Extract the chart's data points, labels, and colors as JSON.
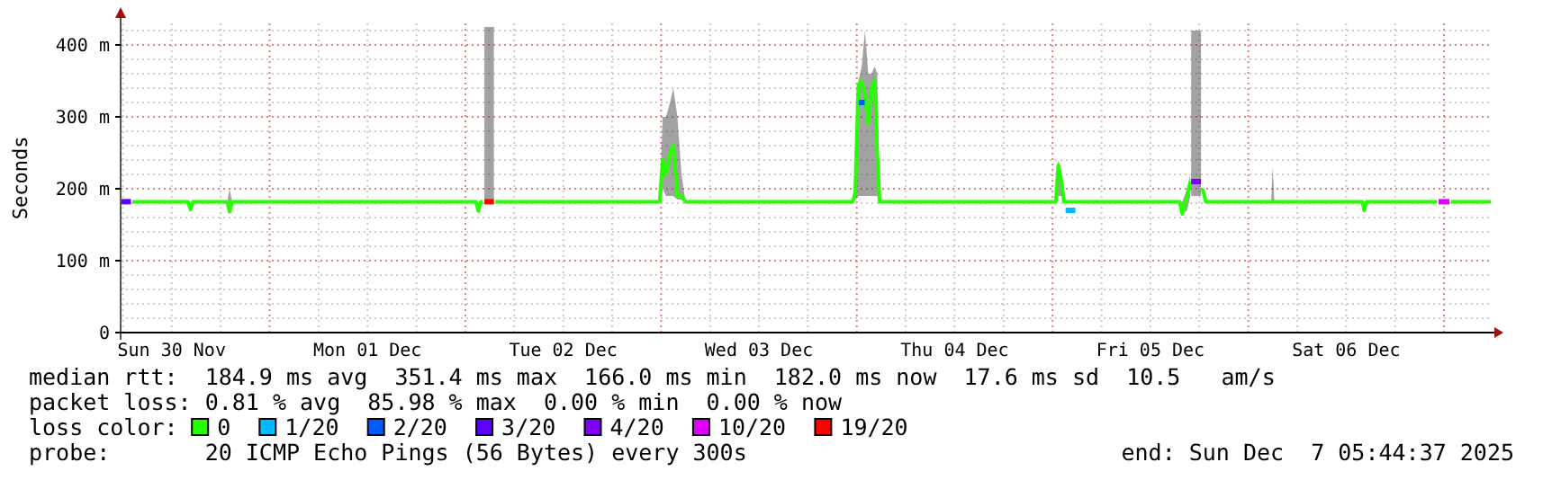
{
  "chart_data": {
    "type": "line",
    "ylabel": "Seconds",
    "legend_title": "loss color:",
    "legend": "bottom",
    "grid": true,
    "xlim": [
      "2025-11-30T05:44",
      "2025-12-07T05:44"
    ],
    "xticks": [
      {
        "value": "2025-11-30T12:00",
        "label": "Sun 30 Nov"
      },
      {
        "value": "2025-12-01T12:00",
        "label": "Mon 01 Dec"
      },
      {
        "value": "2025-12-02T12:00",
        "label": "Tue 02 Dec"
      },
      {
        "value": "2025-12-03T12:00",
        "label": "Wed 03 Dec"
      },
      {
        "value": "2025-12-04T12:00",
        "label": "Thu 04 Dec"
      },
      {
        "value": "2025-12-05T12:00",
        "label": "Fri 05 Dec"
      },
      {
        "value": "2025-12-06T12:00",
        "label": "Sat 06 Dec"
      }
    ],
    "ylim": [
      0,
      430
    ],
    "yticks": [
      0,
      {
        "value": 100,
        "label": "100 m"
      },
      {
        "value": 200,
        "label": "200 m"
      },
      {
        "value": 300,
        "label": "300 m"
      },
      {
        "value": 400,
        "label": "400 m"
      }
    ],
    "series": [
      {
        "name": "0",
        "color": "#26ff00",
        "x": [
          "2025-11-30T07:10",
          "2025-11-30T14:00",
          "2025-11-30T14:18",
          "2025-11-30T14:36",
          "2025-11-30T18:48",
          "2025-11-30T19:06",
          "2025-11-30T19:24",
          "2025-12-02T01:18",
          "2025-12-02T01:36",
          "2025-12-02T01:54",
          "2025-12-02T02:10",
          "2025-12-02T02:56",
          "2025-12-02T03:40",
          "2025-12-02T23:50",
          "2025-12-03T00:12",
          "2025-12-03T00:36",
          "2025-12-03T01:06",
          "2025-12-03T01:30",
          "2025-12-03T02:00",
          "2025-12-03T02:30",
          "2025-12-03T03:00",
          "2025-12-03T23:30",
          "2025-12-03T23:48",
          "2025-12-04T00:12",
          "2025-12-04T00:36",
          "2025-12-04T01:00",
          "2025-12-04T01:24",
          "2025-12-04T01:48",
          "2025-12-04T02:12",
          "2025-12-04T02:30",
          "2025-12-04T02:48",
          "2025-12-05T00:24",
          "2025-12-05T00:42",
          "2025-12-05T01:06",
          "2025-12-05T01:24",
          "2025-12-05T15:36",
          "2025-12-05T15:54",
          "2025-12-05T16:30",
          "2025-12-05T16:54",
          "2025-12-05T17:30",
          "2025-12-05T18:24",
          "2025-12-05T18:48",
          "2025-12-06T02:48",
          "2025-12-06T03:00",
          "2025-12-06T03:12",
          "2025-12-06T14:00",
          "2025-12-06T14:12",
          "2025-12-06T14:30",
          "2025-12-06T23:10",
          "2025-12-07T00:00",
          "2025-12-07T00:50",
          "2025-12-07T05:44"
        ],
        "values": [
          182,
          182,
          171,
          182,
          182,
          168,
          182,
          182,
          169,
          182,
          182,
          null,
          182,
          182,
          240,
          220,
          250,
          260,
          190,
          190,
          182,
          182,
          195,
          345,
          350,
          330,
          290,
          340,
          350,
          250,
          182,
          182,
          233,
          210,
          182,
          182,
          165,
          190,
          210,
          null,
          200,
          182,
          182,
          182,
          182,
          182,
          170,
          182,
          182,
          null,
          182,
          182
        ],
        "lower": [
          null,
          null,
          null,
          null,
          182,
          168,
          182,
          null,
          null,
          null,
          null,
          null,
          null,
          182,
          200,
          190,
          190,
          190,
          185,
          185,
          182,
          182,
          185,
          190,
          190,
          190,
          190,
          190,
          190,
          190,
          182,
          182,
          190,
          190,
          182,
          182,
          165,
          170,
          190,
          null,
          190,
          182,
          182,
          182,
          182,
          null,
          null,
          null,
          null,
          null,
          null,
          null
        ],
        "upper": [
          null,
          null,
          null,
          null,
          182,
          200,
          182,
          null,
          null,
          null,
          null,
          null,
          null,
          182,
          300,
          300,
          320,
          340,
          300,
          220,
          182,
          182,
          200,
          350,
          370,
          420,
          360,
          360,
          370,
          360,
          182,
          182,
          240,
          220,
          182,
          182,
          182,
          200,
          220,
          null,
          200,
          182,
          182,
          230,
          182,
          null,
          null,
          null,
          null,
          null,
          null,
          null
        ]
      },
      {
        "name": "1/20",
        "color": "#00b8ff",
        "x": [
          "2025-12-05T01:36",
          "2025-12-05T02:48"
        ],
        "values": [
          170,
          170
        ]
      },
      {
        "name": "2/20",
        "color": "#0059ff",
        "x": [
          "2025-12-04T00:14",
          "2025-12-04T00:58"
        ],
        "values": [
          320,
          320
        ]
      },
      {
        "name": "3/20",
        "color": "#5e00ff",
        "x": [
          "2025-11-30T05:44",
          "2025-11-30T07:00"
        ],
        "values": [
          182,
          182
        ]
      },
      {
        "name": "4/20",
        "color": "#7e00ff",
        "x": [
          "2025-12-05T17:00",
          "2025-12-05T18:12"
        ],
        "values": [
          210,
          210
        ],
        "lower": [
          190,
          190
        ],
        "upper": [
          420,
          420
        ]
      },
      {
        "name": "10/20",
        "color": "#dd00ff",
        "x": [
          "2025-12-06T23:20",
          "2025-12-07T00:40"
        ],
        "values": [
          182,
          182
        ]
      },
      {
        "name": "19/20",
        "color": "#ff0000",
        "x": [
          "2025-12-02T02:20",
          "2025-12-02T03:30"
        ],
        "values": [
          182,
          182
        ],
        "lower": [
          182,
          182
        ],
        "upper": [
          425,
          425
        ]
      }
    ],
    "annotations": [
      "median rtt:  184.9 ms avg  351.4 ms max  166.0 ms min  182.0 ms now  17.6 ms sd  10.5   am/s",
      "packet loss: 0.81 % avg  85.98 % max  0.00 % min  0.00 % now",
      "probe:       20 ICMP Echo Pings (56 Bytes) every 300s",
      "end: Sun Dec  7 05:44:37 2025"
    ]
  }
}
